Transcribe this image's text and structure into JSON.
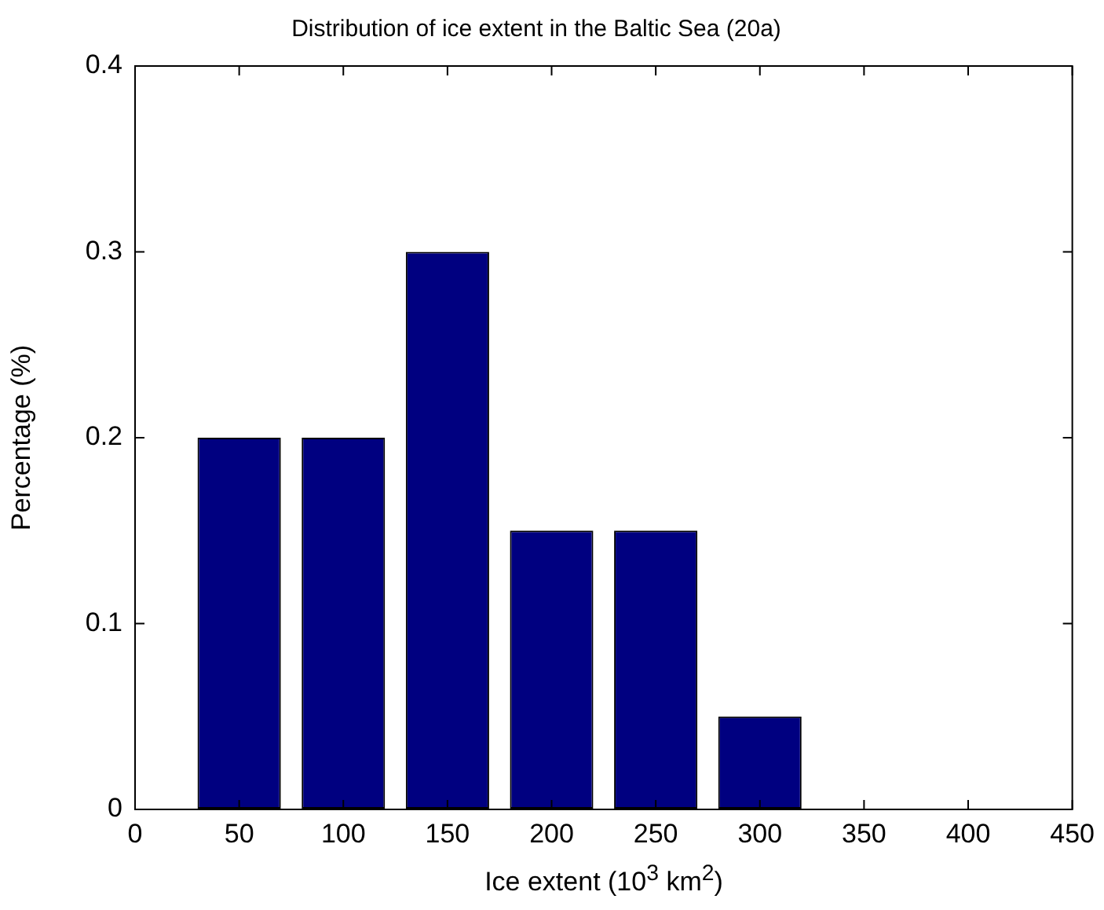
{
  "chart_data": {
    "type": "bar",
    "title": "Distribution of ice extent in the Baltic Sea (20a)",
    "xlabel": "Ice extent (10$^{3}$ km$^{2}$)",
    "ylabel": "Percentage (%)",
    "x": [
      50,
      100,
      150,
      200,
      250,
      300
    ],
    "values": [
      0.2,
      0.2,
      0.3,
      0.15,
      0.15,
      0.05
    ],
    "color": "#000080",
    "xlim": [
      0,
      450
    ],
    "xticks": [
      0,
      50,
      100,
      150,
      200,
      250,
      300,
      350,
      400,
      450
    ],
    "ylim": [
      0,
      0.4
    ],
    "yticks": [
      0,
      0.1,
      0.2,
      0.3,
      0.4
    ],
    "grid": false,
    "legend": false
  }
}
